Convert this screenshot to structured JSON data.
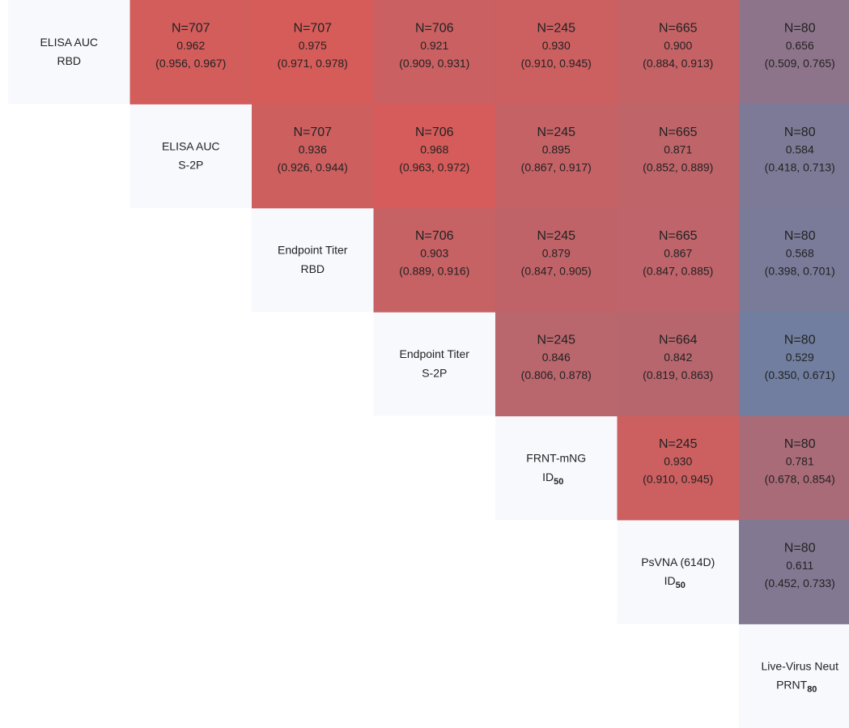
{
  "chart_data": {
    "type": "heatmap",
    "variables": [
      {
        "name": "ELISA AUC",
        "unit": "RBD"
      },
      {
        "name": "ELISA AUC",
        "unit": "S-2P"
      },
      {
        "name": "Endpoint Titer",
        "unit": "RBD"
      },
      {
        "name": "Endpoint Titer",
        "unit": "S-2P"
      },
      {
        "name": "FRNT-mNG",
        "unit": "ID",
        "subscript": "50"
      },
      {
        "name": "PsVNA (614D)",
        "unit": "ID",
        "subscript": "50"
      },
      {
        "name": "Live-Virus Neut",
        "unit": "PRNT",
        "subscript": "80"
      }
    ],
    "clim": [
      0.5,
      1
    ],
    "low_color": "#6a80a4",
    "high_color": "#dc5a55",
    "diagonal_color": "#f8f9fd",
    "cells": [
      [
        {
          "n": 707,
          "n_label": "N=707",
          "r": 0.962,
          "r_label": "0.962",
          "ci": [
            0.956,
            0.967
          ],
          "ci_label": "(0.956, 0.967)"
        },
        {
          "n": 707,
          "n_label": "N=707",
          "r": 0.975,
          "r_label": "0.975",
          "ci": [
            0.971,
            0.978
          ],
          "ci_label": "(0.971, 0.978)"
        },
        {
          "n": 706,
          "n_label": "N=706",
          "r": 0.921,
          "r_label": "0.921",
          "ci": [
            0.909,
            0.931
          ],
          "ci_label": "(0.909, 0.931)"
        },
        {
          "n": 245,
          "n_label": "N=245",
          "r": 0.93,
          "r_label": "0.930",
          "ci": [
            0.91,
            0.945
          ],
          "ci_label": "(0.910, 0.945)"
        },
        {
          "n": 665,
          "n_label": "N=665",
          "r": 0.9,
          "r_label": "0.900",
          "ci": [
            0.884,
            0.913
          ],
          "ci_label": "(0.884, 0.913)"
        },
        {
          "n": 80,
          "n_label": "N=80",
          "r": 0.656,
          "r_label": "0.656",
          "ci": [
            0.509,
            0.765
          ],
          "ci_label": "(0.509, 0.765)"
        }
      ],
      [
        {
          "n": 707,
          "n_label": "N=707",
          "r": 0.936,
          "r_label": "0.936",
          "ci": [
            0.926,
            0.944
          ],
          "ci_label": "(0.926, 0.944)"
        },
        {
          "n": 706,
          "n_label": "N=706",
          "r": 0.968,
          "r_label": "0.968",
          "ci": [
            0.963,
            0.972
          ],
          "ci_label": "(0.963, 0.972)"
        },
        {
          "n": 245,
          "n_label": "N=245",
          "r": 0.895,
          "r_label": "0.895",
          "ci": [
            0.867,
            0.917
          ],
          "ci_label": "(0.867, 0.917)"
        },
        {
          "n": 665,
          "n_label": "N=665",
          "r": 0.871,
          "r_label": "0.871",
          "ci": [
            0.852,
            0.889
          ],
          "ci_label": "(0.852, 0.889)"
        },
        {
          "n": 80,
          "n_label": "N=80",
          "r": 0.584,
          "r_label": "0.584",
          "ci": [
            0.418,
            0.713
          ],
          "ci_label": "(0.418, 0.713)"
        }
      ],
      [
        {
          "n": 706,
          "n_label": "N=706",
          "r": 0.903,
          "r_label": "0.903",
          "ci": [
            0.889,
            0.916
          ],
          "ci_label": "(0.889, 0.916)"
        },
        {
          "n": 245,
          "n_label": "N=245",
          "r": 0.879,
          "r_label": "0.879",
          "ci": [
            0.847,
            0.905
          ],
          "ci_label": "(0.847, 0.905)"
        },
        {
          "n": 665,
          "n_label": "N=665",
          "r": 0.867,
          "r_label": "0.867",
          "ci": [
            0.847,
            0.885
          ],
          "ci_label": "(0.847, 0.885)"
        },
        {
          "n": 80,
          "n_label": "N=80",
          "r": 0.568,
          "r_label": "0.568",
          "ci": [
            0.398,
            0.701
          ],
          "ci_label": "(0.398, 0.701)"
        }
      ],
      [
        {
          "n": 245,
          "n_label": "N=245",
          "r": 0.846,
          "r_label": "0.846",
          "ci": [
            0.806,
            0.878
          ],
          "ci_label": "(0.806, 0.878)"
        },
        {
          "n": 664,
          "n_label": "N=664",
          "r": 0.842,
          "r_label": "0.842",
          "ci": [
            0.819,
            0.863
          ],
          "ci_label": "(0.819, 0.863)"
        },
        {
          "n": 80,
          "n_label": "N=80",
          "r": 0.529,
          "r_label": "0.529",
          "ci": [
            0.35,
            0.671
          ],
          "ci_label": "(0.350, 0.671)"
        }
      ],
      [
        {
          "n": 245,
          "n_label": "N=245",
          "r": 0.93,
          "r_label": "0.930",
          "ci": [
            0.91,
            0.945
          ],
          "ci_label": "(0.910, 0.945)"
        },
        {
          "n": 80,
          "n_label": "N=80",
          "r": 0.781,
          "r_label": "0.781",
          "ci": [
            0.678,
            0.854
          ],
          "ci_label": "(0.678, 0.854)"
        }
      ],
      [
        {
          "n": 80,
          "n_label": "N=80",
          "r": 0.611,
          "r_label": "0.611",
          "ci": [
            0.452,
            0.733
          ],
          "ci_label": "(0.452, 0.733)"
        }
      ]
    ]
  }
}
